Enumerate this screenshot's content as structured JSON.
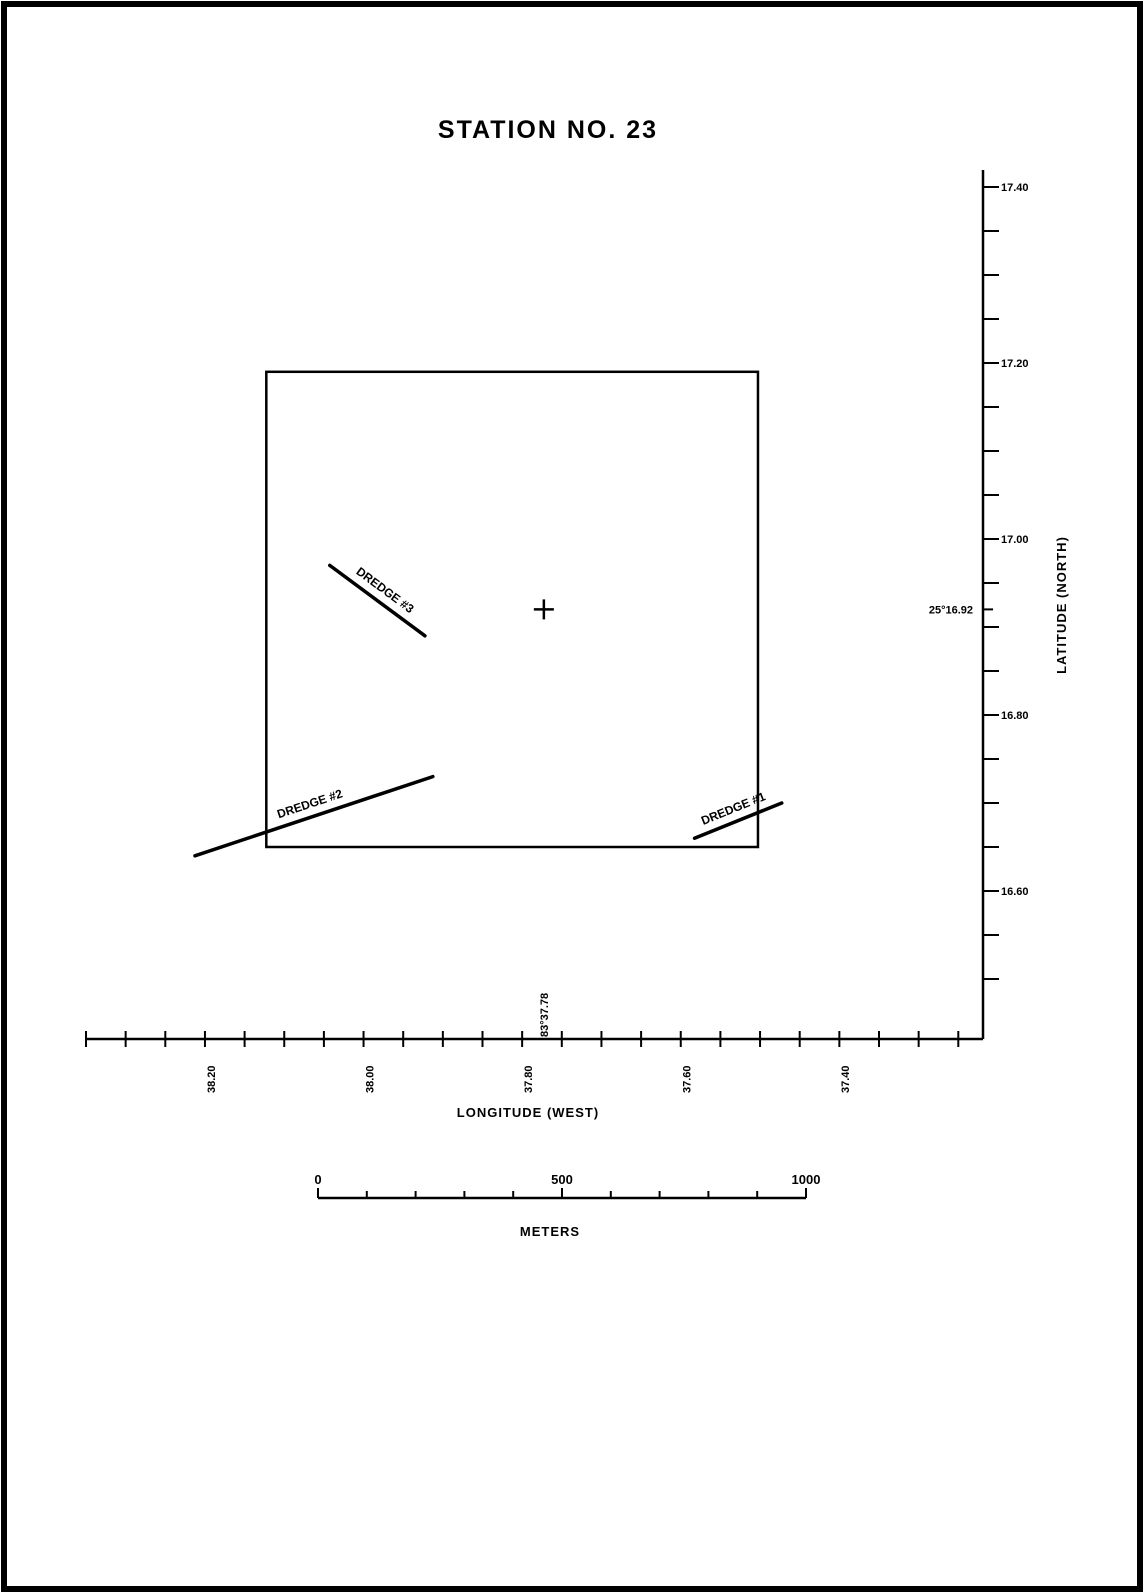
{
  "title": "STATION NO. 23",
  "x_axis": {
    "title": "LONGITUDE (WEST)",
    "ticks": [
      {
        "value": 38.2,
        "label": "38.20"
      },
      {
        "value": 38.0,
        "label": "38.00"
      },
      {
        "value": 37.8,
        "label": "37.80"
      },
      {
        "value": 37.6,
        "label": "37.60"
      },
      {
        "value": 37.4,
        "label": "37.40"
      }
    ],
    "station_value": 37.78,
    "station_label": "83°37.78"
  },
  "y_axis": {
    "title": "LATITUDE (NORTH)",
    "ticks": [
      {
        "value": 17.4,
        "label": "17.40"
      },
      {
        "value": 17.2,
        "label": "17.20"
      },
      {
        "value": 17.0,
        "label": "17.00"
      },
      {
        "value": 16.8,
        "label": "16.80"
      },
      {
        "value": 16.6,
        "label": "16.60"
      }
    ],
    "station_value": 16.92,
    "station_label": "25°16.92"
  },
  "station_box": {
    "lon": [
      38.13,
      37.51
    ],
    "lat": [
      17.19,
      16.65
    ]
  },
  "station_center": {
    "lon": 37.78,
    "lat": 16.92
  },
  "dredges": [
    {
      "label": "DREDGE #3",
      "start": {
        "lon": 38.05,
        "lat": 16.97
      },
      "end": {
        "lon": 37.93,
        "lat": 16.89
      }
    },
    {
      "label": "DREDGE #2",
      "start": {
        "lon": 38.22,
        "lat": 16.64
      },
      "end": {
        "lon": 37.92,
        "lat": 16.73
      }
    },
    {
      "label": "DREDGE #1",
      "start": {
        "lon": 37.59,
        "lat": 16.66
      },
      "end": {
        "lon": 37.48,
        "lat": 16.7
      }
    }
  ],
  "scale_bar": {
    "unit_label": "METERS",
    "labels": [
      {
        "value": 0,
        "label": "0"
      },
      {
        "value": 500,
        "label": "500"
      },
      {
        "value": 1000,
        "label": "1000"
      }
    ],
    "max": 1000
  }
}
